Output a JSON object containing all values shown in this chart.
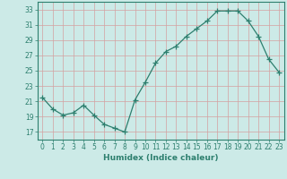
{
  "x": [
    0,
    1,
    2,
    3,
    4,
    5,
    6,
    7,
    8,
    9,
    10,
    11,
    12,
    13,
    14,
    15,
    16,
    17,
    18,
    19,
    20,
    21,
    22,
    23
  ],
  "y": [
    21.5,
    20.0,
    19.2,
    19.5,
    20.5,
    19.2,
    18.0,
    17.5,
    17.0,
    21.2,
    23.5,
    26.0,
    27.5,
    28.2,
    29.5,
    30.5,
    31.5,
    32.8,
    32.8,
    32.8,
    31.5,
    29.5,
    26.5,
    24.8
  ],
  "line_color": "#2d7f6e",
  "marker": "+",
  "marker_size": 4,
  "bg_color": "#cceae7",
  "grid_color": "#b8d8d5",
  "axis_color": "#2d7f6e",
  "tick_color": "#2d7f6e",
  "xlabel": "Humidex (Indice chaleur)",
  "ylim": [
    16,
    34
  ],
  "yticks": [
    17,
    19,
    21,
    23,
    25,
    27,
    29,
    31,
    33
  ],
  "xticks": [
    0,
    1,
    2,
    3,
    4,
    5,
    6,
    7,
    8,
    9,
    10,
    11,
    12,
    13,
    14,
    15,
    16,
    17,
    18,
    19,
    20,
    21,
    22,
    23
  ],
  "label_fontsize": 6.5,
  "tick_fontsize": 5.5
}
